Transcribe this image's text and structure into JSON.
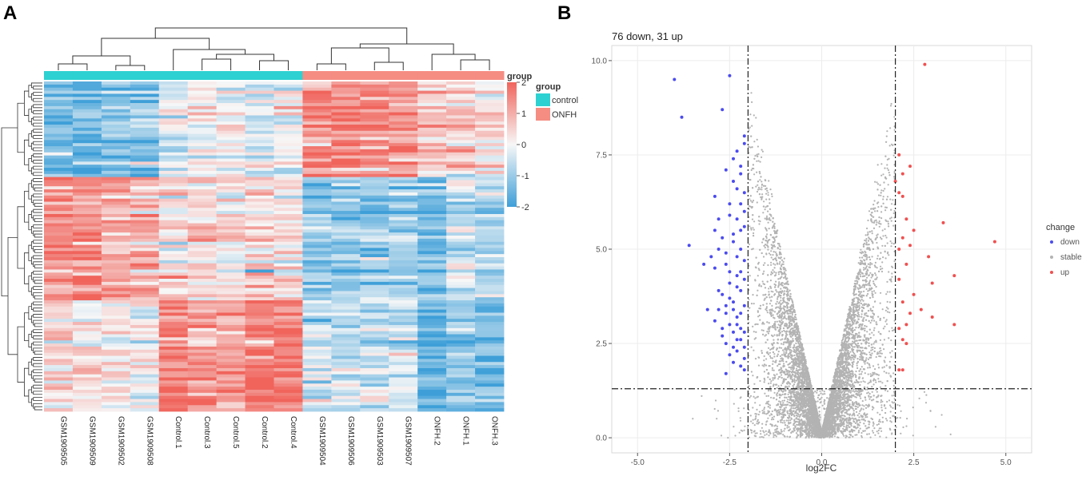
{
  "panels": {
    "a_label": "A",
    "b_label": "B"
  },
  "colors": {
    "heat_low": "#3e9fd8",
    "heat_mid": "#f7f7f7",
    "heat_high": "#f0645c",
    "group_control": "#2ed1d1",
    "group_onfh": "#f58d83",
    "down": "#4b4bf0",
    "stable": "#b3b3b3",
    "up": "#f05050",
    "panel_bg": "#ffffff",
    "grid": "#ececec"
  },
  "chart_data": [
    {
      "type": "heatmap",
      "title": "",
      "samples": [
        "GSM1909505",
        "GSM1909509",
        "GSM1909502",
        "GSM1909508",
        "Control.1",
        "Control.3",
        "Control.5",
        "Control.2",
        "Control.4",
        "GSM1909504",
        "GSM1909506",
        "GSM1909503",
        "GSM1909507",
        "ONFH.2",
        "ONFH.1",
        "ONFH.3"
      ],
      "groups": [
        "control",
        "control",
        "control",
        "control",
        "control",
        "control",
        "control",
        "control",
        "control",
        "ONFH",
        "ONFH",
        "ONFH",
        "ONFH",
        "ONFH",
        "ONFH",
        "ONFH"
      ],
      "row_count": 107,
      "color_scale": {
        "min": -2,
        "max": 2,
        "ticks": [
          "2",
          "1",
          "0",
          "-1",
          "-2"
        ],
        "title": "group"
      },
      "group_legend": {
        "title": "group",
        "entries": [
          "control",
          "ONFH"
        ]
      },
      "row_clusters": [
        {
          "rows": 31,
          "means": [
            -1.4,
            -1.5,
            -1.2,
            -1.1,
            -0.3,
            0.1,
            0.0,
            -0.2,
            -0.1,
            1.4,
            1.5,
            1.4,
            1.3,
            0.8,
            0.5,
            0.3
          ]
        },
        {
          "rows": 40,
          "means": [
            1.4,
            1.3,
            1.0,
            0.9,
            0.2,
            0.3,
            0.2,
            0.4,
            0.3,
            -1.2,
            -1.1,
            -1.1,
            -1.0,
            -1.4,
            -0.6,
            -0.8
          ]
        },
        {
          "rows": 36,
          "means": [
            0.3,
            0.2,
            0.1,
            -0.1,
            1.6,
            1.1,
            1.0,
            1.7,
            1.6,
            -0.5,
            -0.6,
            -0.4,
            -0.5,
            -1.6,
            -1.2,
            -1.4
          ]
        }
      ]
    },
    {
      "type": "scatter",
      "title": "76 down, 31 up",
      "xlabel": "log2FC",
      "ylabel": "",
      "xlim": [
        -5.7,
        5.7
      ],
      "ylim": [
        -0.4,
        10.4
      ],
      "xticks": [
        "-5.0",
        "-2.5",
        "0.0",
        "2.5",
        "5.0"
      ],
      "xtick_values": [
        -5,
        -2.5,
        0,
        2.5,
        5
      ],
      "yticks": [
        "0.0",
        "2.5",
        "5.0",
        "7.5",
        "10.0"
      ],
      "ytick_values": [
        0,
        2.5,
        5,
        7.5,
        10
      ],
      "thresholds": {
        "fc": [
          -2,
          2
        ],
        "p": 1.3
      },
      "legend": {
        "title": "change",
        "entries": [
          "down",
          "stable",
          "up"
        ],
        "position": "right"
      },
      "series": [
        {
          "name": "down",
          "points": [
            [
              -4.0,
              9.5
            ],
            [
              -3.8,
              8.5
            ],
            [
              -2.5,
              9.6
            ],
            [
              -2.7,
              8.7
            ],
            [
              -3.6,
              5.1
            ],
            [
              -2.3,
              7.6
            ],
            [
              -2.1,
              8.0
            ],
            [
              -2.2,
              7.2
            ],
            [
              -2.6,
              7.1
            ],
            [
              -2.4,
              6.8
            ],
            [
              -2.9,
              6.4
            ],
            [
              -2.3,
              6.6
            ],
            [
              -2.2,
              6.2
            ],
            [
              -2.5,
              5.9
            ],
            [
              -2.1,
              5.6
            ],
            [
              -2.7,
              5.3
            ],
            [
              -3.0,
              4.8
            ],
            [
              -2.8,
              5.0
            ],
            [
              -2.4,
              5.4
            ],
            [
              -2.2,
              5.0
            ],
            [
              -2.6,
              4.6
            ],
            [
              -2.3,
              4.3
            ],
            [
              -2.9,
              4.5
            ],
            [
              -2.1,
              4.7
            ],
            [
              -2.5,
              4.1
            ],
            [
              -2.7,
              3.8
            ],
            [
              -2.4,
              3.6
            ],
            [
              -2.2,
              3.9
            ],
            [
              -3.1,
              3.4
            ],
            [
              -2.8,
              3.4
            ],
            [
              -2.6,
              3.3
            ],
            [
              -2.3,
              3.2
            ],
            [
              -2.5,
              3.0
            ],
            [
              -2.1,
              3.5
            ],
            [
              -2.9,
              3.1
            ],
            [
              -2.4,
              2.8
            ],
            [
              -2.7,
              2.7
            ],
            [
              -2.2,
              2.6
            ],
            [
              -2.6,
              2.5
            ],
            [
              -2.3,
              2.3
            ],
            [
              -2.5,
              2.2
            ],
            [
              -2.1,
              2.1
            ],
            [
              -2.4,
              2.0
            ],
            [
              -2.2,
              1.9
            ],
            [
              -2.6,
              1.7
            ],
            [
              -2.1,
              2.8
            ],
            [
              -2.3,
              4.0
            ],
            [
              -2.2,
              4.4
            ],
            [
              -2.5,
              3.7
            ],
            [
              -2.1,
              6.0
            ],
            [
              -2.4,
              5.2
            ],
            [
              -2.8,
              5.8
            ],
            [
              -2.2,
              5.5
            ],
            [
              -2.6,
              3.5
            ],
            [
              -2.3,
              3.0
            ],
            [
              -2.1,
              2.4
            ],
            [
              -2.7,
              2.9
            ],
            [
              -2.4,
              2.4
            ],
            [
              -2.2,
              3.3
            ],
            [
              -3.2,
              4.6
            ],
            [
              -2.9,
              5.5
            ],
            [
              -2.3,
              5.8
            ],
            [
              -2.1,
              6.5
            ],
            [
              -2.5,
              6.2
            ],
            [
              -2.2,
              7.0
            ],
            [
              -2.4,
              7.4
            ],
            [
              -2.1,
              7.8
            ],
            [
              -2.6,
              4.9
            ],
            [
              -2.3,
              4.8
            ],
            [
              -2.1,
              4.2
            ],
            [
              -2.5,
              4.4
            ],
            [
              -2.2,
              2.9
            ],
            [
              -2.4,
              3.4
            ],
            [
              -2.8,
              3.9
            ],
            [
              -2.3,
              2.6
            ],
            [
              -2.1,
              1.8
            ]
          ]
        },
        {
          "name": "up",
          "points": [
            [
              2.8,
              9.9
            ],
            [
              2.1,
              7.5
            ],
            [
              2.4,
              7.2
            ],
            [
              2.2,
              7.0
            ],
            [
              2.1,
              6.5
            ],
            [
              2.2,
              6.4
            ],
            [
              2.0,
              6.8
            ],
            [
              2.3,
              5.8
            ],
            [
              3.3,
              5.7
            ],
            [
              2.5,
              5.5
            ],
            [
              4.7,
              5.2
            ],
            [
              2.2,
              5.3
            ],
            [
              2.4,
              5.1
            ],
            [
              2.1,
              5.0
            ],
            [
              2.9,
              4.8
            ],
            [
              2.3,
              4.6
            ],
            [
              3.6,
              4.3
            ],
            [
              2.1,
              4.2
            ],
            [
              3.0,
              4.1
            ],
            [
              2.5,
              3.8
            ],
            [
              2.2,
              3.6
            ],
            [
              2.7,
              3.4
            ],
            [
              2.4,
              3.3
            ],
            [
              3.0,
              3.2
            ],
            [
              2.3,
              3.0
            ],
            [
              3.6,
              3.0
            ],
            [
              2.1,
              2.9
            ],
            [
              2.2,
              2.6
            ],
            [
              2.3,
              2.5
            ],
            [
              2.1,
              1.8
            ],
            [
              2.2,
              1.8
            ]
          ]
        },
        {
          "name": "stable",
          "points": []
        }
      ]
    }
  ]
}
